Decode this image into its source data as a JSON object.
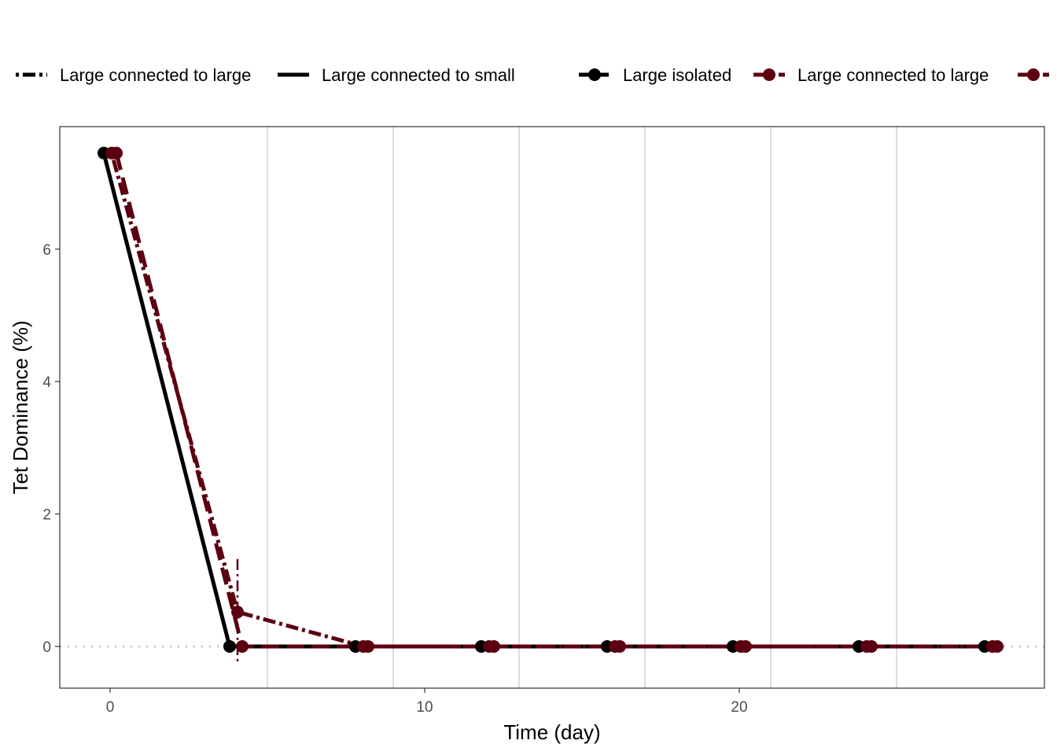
{
  "legend": {
    "linetype_items": [
      {
        "label": "Large connected to large",
        "dash": "dotdash"
      },
      {
        "label": "Large connected to small",
        "dash": "solid"
      }
    ],
    "color_items": [
      {
        "label": "Large isolated",
        "color": "#000000"
      },
      {
        "label": "Large connected to large",
        "color": "#5c0011"
      },
      {
        "label": "",
        "color": "#5c0011"
      }
    ]
  },
  "chart_data": {
    "type": "line",
    "title": "",
    "xlabel": "Time (day)",
    "ylabel": "Tet Dominance (%)",
    "xlim": [
      -1.6,
      29.7
    ],
    "ylim": [
      -0.63,
      7.85
    ],
    "xticks": [
      0,
      10,
      20
    ],
    "yticks": [
      0,
      2,
      4,
      6
    ],
    "vertical_gridlines_x": [
      5,
      9,
      13,
      17,
      21,
      25
    ],
    "reference_line_y": 0,
    "series": [
      {
        "name": "Large isolated",
        "color": "#000000",
        "dash": "solid",
        "x": [
          0,
          4,
          8,
          12,
          16,
          20,
          24,
          28
        ],
        "y": [
          7.45,
          0,
          0,
          0,
          0,
          0,
          0,
          0
        ]
      },
      {
        "name": "Large connected to large",
        "color": "#5c0011",
        "dash": "dotdash",
        "x": [
          0,
          4,
          8,
          12,
          16,
          20,
          24,
          28
        ],
        "y": [
          7.45,
          0.52,
          0,
          0,
          0,
          0,
          0,
          0
        ],
        "error_bar": {
          "x": 4,
          "low": -0.28,
          "high": 1.32
        }
      },
      {
        "name": "",
        "color": "#5c0011",
        "dash": "longdash",
        "x": [
          0,
          4,
          8,
          12,
          16,
          20,
          24,
          28
        ],
        "y": [
          7.45,
          0,
          0,
          0,
          0,
          0,
          0,
          0
        ]
      }
    ]
  }
}
